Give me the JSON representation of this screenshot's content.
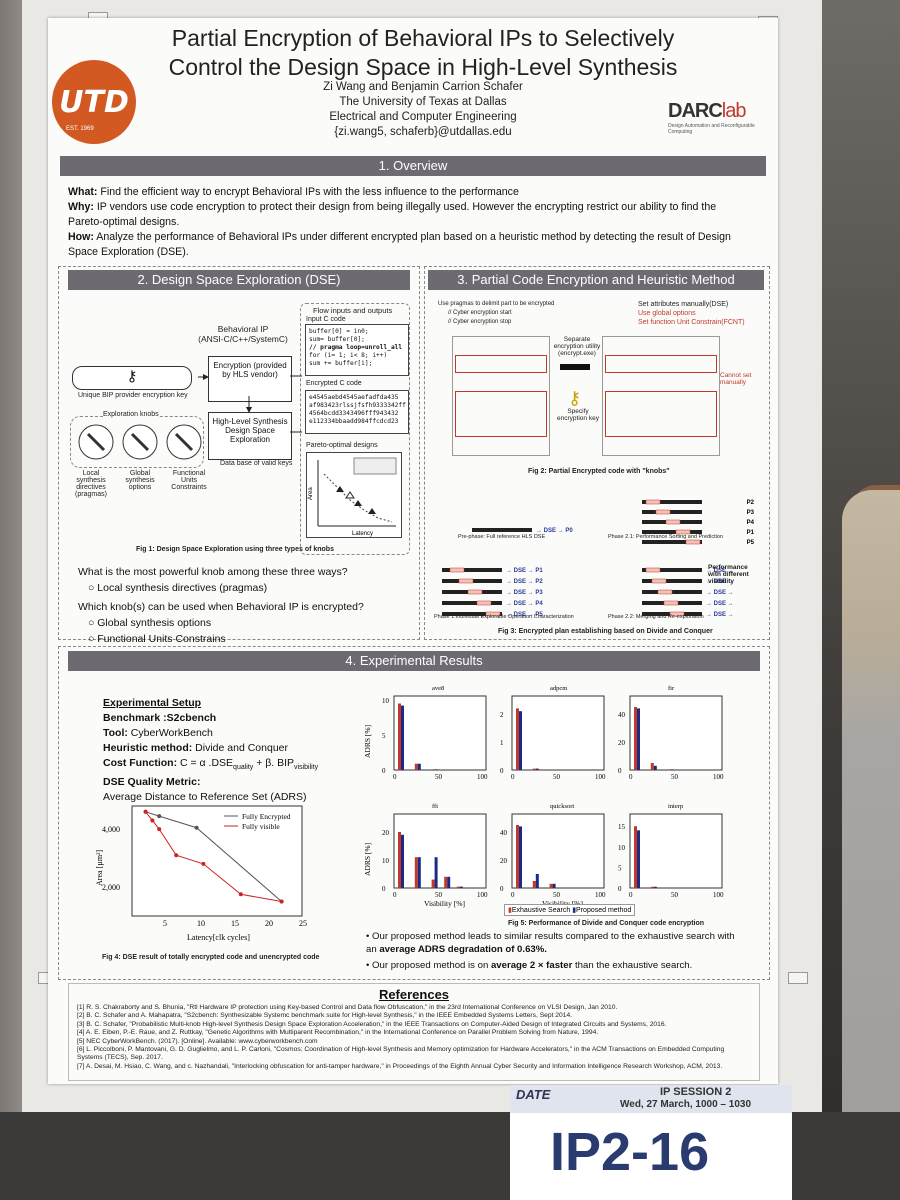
{
  "poster": {
    "title_line1": "Partial Encryption of Behavioral IPs to Selectively",
    "title_line2": "Control the Design Space in High-Level Synthesis",
    "authors": "Zi Wang and Benjamin Carrion Schafer",
    "affil1": "The University of Texas at Dallas",
    "affil2": "Electrical and Computer Engineering",
    "email": "{zi.wang5, schaferb}@utdallas.edu",
    "logo_text": "UTD",
    "logo_year": "EST. 1969",
    "lab_logo": "DARClab",
    "lab_sub": "Design Automation and Reconfigurable Computing"
  },
  "overview": {
    "header": "1. Overview",
    "what_label": "What:",
    "what": " Find the efficient way to encrypt Behavioral IPs with the less influence to the performance",
    "why_label": "Why:",
    "why": " IP vendors use code encryption to protect their design from being illegally used. However the encrypting restrict our ability to find the Pareto-optimal designs.",
    "how_label": "How:",
    "how": " Analyze the performance of Behavioral IPs under different encrypted plan based on a heuristic method by detecting the result of Design Space Exploration (DSE)."
  },
  "dse": {
    "header": "2. Design Space Exploration (DSE)",
    "flow_title": "Flow inputs and outputs",
    "input_code": "Input C code",
    "code_lines": [
      "buffer[0] = in0;",
      "sum= buffer[0];",
      "// pragma loop=unroll_all",
      "for (i= 1; i< 8; i++)",
      "  sum += buffer[i];"
    ],
    "behavioral_ip": "Behavioral IP",
    "behavioral_ip2": "(ANSI-C/C++/SystemC)",
    "encryption": "Encryption (provided by HLS vendor)",
    "hls": "High-Level Synthesis Design Space Exploration",
    "key_label": "Unique BIP provider encryption key",
    "encrypted_code": "Encrypted C code",
    "enc_lines": [
      "e4545aebd4545aefadfda435",
      "af983423rlssjfsfh9333342ff",
      "4564bcdd3343496fff943432",
      "e112334bbaadd984ffcdcd23"
    ],
    "knobs_label": "Exploration knobs",
    "db_keys": "Data base of valid keys",
    "knob1": "Local synthesis directives (pragmas)",
    "knob2": "Global synthesis options",
    "knob3": "Functional Units Constraints",
    "pareto": "Pareto-optimal designs",
    "area": "Area",
    "latency": "Latency",
    "fig1": "Fig 1: Design Space Exploration using three types of knobs",
    "q1": "What is the most powerful knob among these three ways?",
    "a1": "Local synthesis directives (pragmas)",
    "q2": "Which knob(s) can be used when Behavioral IP is encrypted?",
    "a2a": "Global synthesis options",
    "a2b": "Functional Units Constrains"
  },
  "pce": {
    "header": "3. Partial Code Encryption and Heuristic Method",
    "note1": "Use pragmas to delimit part to be encrypted",
    "note2": "// Cyber encryption start",
    "note3": "// Cyber encryption stop",
    "set1": "Set attributes manually(DSE)",
    "set2": "Use global options",
    "set3": "Set function Unit Constrain(FCNT)",
    "sep": "Separate encryption utility (encrypt.exe)",
    "specify": "Specify encryption key",
    "cannot": "Cannot set manually",
    "fig2": "Fig 2: Partial Encrypted code with \"knobs\"",
    "fig3": "Fig 3: Encrypted plan establishing based on Divide and Conquer",
    "phase_pre": "Pre-phase: Full reference HLS DSE",
    "phase1": "Phase 1:Individual Explorable Operation Characterization",
    "phase21": "Phase 2.1: Performance Sorting and Prediction",
    "phase22": "Phase 2.2: Merging and Re-exploration",
    "perf": "Performance with different visibility",
    "dse": "DSE",
    "p0": "P0",
    "p_labels": [
      "P1",
      "P2",
      "P3",
      "P4",
      "P5"
    ],
    "sorted": [
      "P2",
      "P3",
      "P4",
      "P1",
      "P5"
    ]
  },
  "results": {
    "header": "4. Experimental Results",
    "setup_title": "Experimental Setup",
    "benchmark_label": "Benchmark :",
    "benchmark": "S2cbench",
    "tool_label": "Tool:",
    "tool": " CyberWorkBench",
    "heur_label": "Heuristic method:",
    "heur": " Divide and Conquer",
    "cost_label": "Cost Function:",
    "cost": "C = α .DSE",
    "cost_q": "quality",
    "cost_b": " + β. BIP",
    "cost_v": "visibility",
    "metric_label": "DSE Quality Metric:",
    "metric": "Average Distance to Reference Set (ADRS)",
    "fig4": "Fig 4: DSE result of totally encrypted code and unencrypted code",
    "fig5": "Fig 5: Performance of Divide and Conquer code encryption",
    "bullet1a": "Our proposed method leads to similar results compared to the exhaustive search with an ",
    "bullet1b": "average ADRS degradation of 0.63%.",
    "bullet2a": "Our proposed method is on ",
    "bullet2b": "average 2 × faster",
    "bullet2c": " than the exhaustive search."
  },
  "chart_data": [
    {
      "type": "line",
      "xlabel": "Latency[clk cycles]",
      "ylabel": "Area [µm²]",
      "xlim": [
        0,
        25
      ],
      "ylim": [
        1000,
        4800
      ],
      "xticks": [
        5,
        10,
        15,
        20,
        25
      ],
      "yticks": [
        2000,
        4000
      ],
      "ytick_labels": [
        "2,000",
        "4,000"
      ],
      "series": [
        {
          "name": "Fully Encrypted",
          "color": "#555555",
          "x": [
            2,
            4,
            9.5,
            22
          ],
          "y": [
            4600,
            4450,
            4050,
            1500
          ]
        },
        {
          "name": "Fully visible",
          "color": "#cc2222",
          "x": [
            2,
            3,
            4,
            6.5,
            10.5,
            16,
            22
          ],
          "y": [
            4600,
            4300,
            4000,
            3100,
            2800,
            1750,
            1500
          ]
        }
      ]
    },
    {
      "type": "bar",
      "ylabel": "ADRS [%]",
      "xlabel": "Visibility [%]",
      "legend": [
        "Exhaustive Search",
        "Proposed method"
      ],
      "colors": [
        "#c0392b",
        "#1c2a86"
      ],
      "panels": [
        {
          "name": "ave8",
          "ymax": 10,
          "yticks": [
            0,
            5,
            10
          ],
          "pairs": [
            [
              0,
              9.5,
              9.2
            ],
            [
              20,
              0.9,
              0.9
            ],
            [
              40,
              0.1,
              0.1
            ]
          ]
        },
        {
          "name": "adpcm",
          "ymax": 2.5,
          "yticks": [
            0,
            1,
            2
          ],
          "pairs": [
            [
              0,
              2.2,
              2.1
            ],
            [
              20,
              0.05,
              0.05
            ]
          ]
        },
        {
          "name": "fir",
          "ymax": 50,
          "yticks": [
            0,
            20,
            40
          ],
          "pairs": [
            [
              0,
              45,
              44
            ],
            [
              20,
              5,
              3
            ],
            [
              40,
              0.5,
              0.5
            ]
          ]
        },
        {
          "name": "fft",
          "ymax": 25,
          "yticks": [
            0,
            10,
            20
          ],
          "pairs": [
            [
              0,
              20,
              19
            ],
            [
              20,
              11,
              11
            ],
            [
              40,
              3,
              11
            ],
            [
              55,
              4,
              4
            ],
            [
              70,
              0.5,
              0.5
            ]
          ]
        },
        {
          "name": "quicksort",
          "ymax": 50,
          "yticks": [
            0,
            20,
            40
          ],
          "pairs": [
            [
              0,
              45,
              44
            ],
            [
              20,
              5,
              10
            ],
            [
              40,
              3,
              3
            ]
          ]
        },
        {
          "name": "interp",
          "ymax": 17,
          "yticks": [
            0,
            5,
            10,
            15
          ],
          "pairs": [
            [
              0,
              15,
              14
            ],
            [
              20,
              0.3,
              0.3
            ]
          ]
        }
      ],
      "xticks": [
        0,
        50,
        100
      ]
    }
  ],
  "refs": {
    "title": "References",
    "lines": [
      "[1] R. S. Chakraborty and S. Bhunia, \"Rtl Hardware IP protection using Key-based Control and Data flow Obfuscation,\" in the 23rd International Conference on VLSI Design, Jan 2010.",
      "[2] B. C. Schafer and A. Mahapatra, \"S2cbench: Synthesizable Systemc benchmark suite for High-level Synthesis,\" in the IEEE Embedded Systems Letters, Sept 2014.",
      "[3] B. C. Schafer, \"Probabilistic Multi-knob High-level Synthesis Design Space Exploration Acceleration,\" in the IEEE Transactions on Computer-Aided Design of Integrated Circuits and Systems, 2016.",
      "[4] A. E. Eiben, P.-E. Raue, and Z. Ruttkay, \"Genetic Algorithms with Multiparent Recombination,\" in the International Conference on Parallel Problem Solving from Nature, 1994.",
      "[5] NEC CyberWorkBench. (2017). [Online]. Available: www.cyberworkbench.com",
      "[6] L. Piccolboni, P. Mantovani, G. D. Guglielmo, and L. P. Carloni, \"Cosmos: Coordination of High-level Synthesis and Memory optimization for Hardware Accelerators,\" in the ACM Transactions on Embedded Computing Systems (TECS), Sep. 2017.",
      "[7] A. Desai, M. Hsiao, C. Wang, and c. Nazhandali, \"Interlocking obfuscation for anti-tamper hardware,\" in Proceedings of the Eighth Annual Cyber Security and Information Intelligence Research Workshop, ACM, 2013."
    ]
  },
  "card": {
    "brand": "DATE",
    "session": "IP SESSION 2",
    "datetime": "Wed, 27 March, 1000 – 1030",
    "code": "IP2-16"
  }
}
